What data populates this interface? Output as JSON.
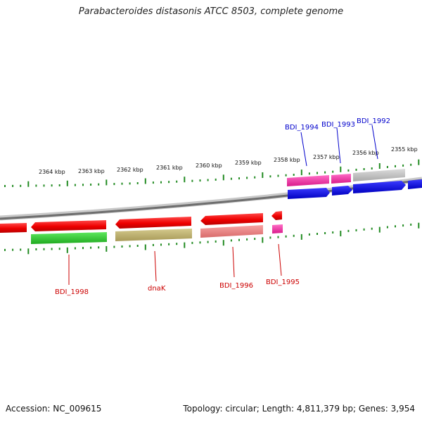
{
  "title": "Parabacteroides distasonis ATCC 8503, complete genome",
  "footer": {
    "accession": "Accession: NC_009615",
    "summary": "Topology: circular; Length: 4,811,379 bp; Genes: 3,954"
  },
  "scale_labels": [
    "2364 kbp",
    "2363 kbp",
    "2362 kbp",
    "2361 kbp",
    "2360 kbp",
    "2359 kbp",
    "2358 kbp",
    "2357 kbp",
    "2356 kbp",
    "2355 kbp"
  ],
  "gene_labels": {
    "top": [
      "BDI_1994",
      "BDI_1993",
      "BDI_1992"
    ],
    "bottom": [
      "BDI_1998",
      "dnaK",
      "BDI_1996",
      "BDI_1995"
    ]
  },
  "colors": {
    "top_label": "#0000cc",
    "bottom_label": "#cc0000",
    "tick": "#228b22",
    "backbone": "#888888"
  }
}
